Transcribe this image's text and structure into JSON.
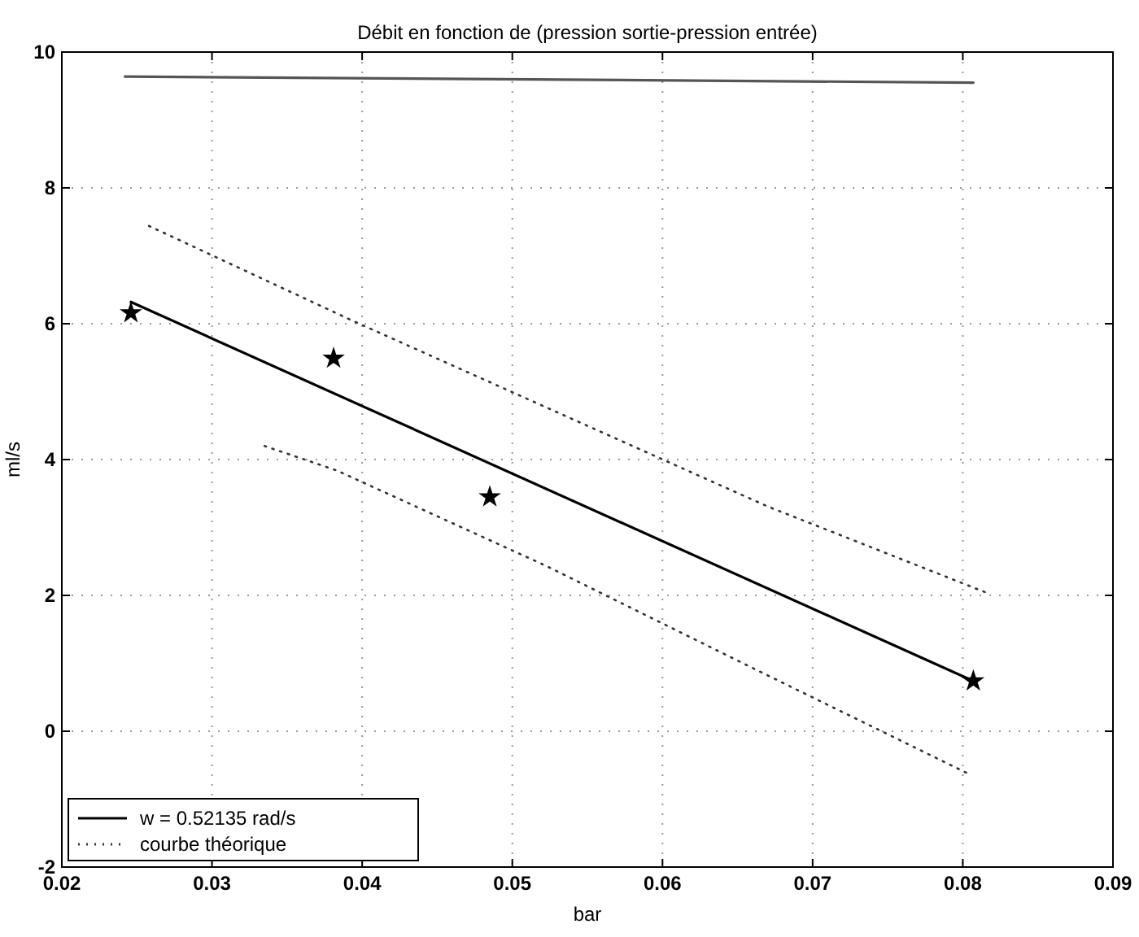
{
  "chart_data": {
    "type": "line",
    "title": "Débit en fonction de (pression sortie-pression entrée)",
    "xlabel": "bar",
    "ylabel": "ml/s",
    "xlim": [
      0.02,
      0.09
    ],
    "xticks": [
      0.02,
      0.03,
      0.04,
      0.05,
      0.06,
      0.07,
      0.08,
      0.09
    ],
    "ylim": [
      -2,
      10
    ],
    "yticks": [
      -2,
      0,
      2,
      4,
      6,
      8,
      10
    ],
    "grid": true,
    "legend": "bottom left",
    "series": [
      {
        "type": "scatter",
        "marker": "star",
        "color": "#000000",
        "x": [
          0.0246,
          0.0381,
          0.0485,
          0.0807
        ],
        "values": [
          6.16,
          5.49,
          3.45,
          0.74
        ]
      },
      {
        "name": "w = 0.52135 rad/s",
        "color": "#000000",
        "line_style": "solid",
        "x": [
          0.0246,
          0.0807
        ],
        "values": [
          6.32,
          0.74
        ]
      },
      {
        "name": "courbe théorique",
        "color": "#333333",
        "line_style": "dotted",
        "x": [
          0.0258,
          0.0394,
          0.067,
          0.0818
        ],
        "values": [
          7.44,
          6.04,
          3.31,
          2.02
        ]
      },
      {
        "color": "#333333",
        "line_style": "dotted",
        "x": [
          0.0335,
          0.0383,
          0.0522,
          0.0661,
          0.0805
        ],
        "values": [
          4.2,
          3.84,
          2.44,
          0.92,
          -0.64
        ]
      },
      {
        "color": "#555555",
        "line_style": "solid",
        "x": [
          0.0242,
          0.0807
        ],
        "values": [
          9.64,
          9.55
        ]
      }
    ]
  }
}
